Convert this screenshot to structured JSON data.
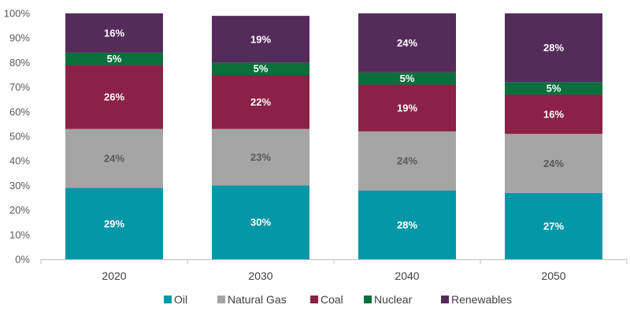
{
  "chart_data": {
    "type": "bar",
    "stacked": true,
    "categories": [
      "2020",
      "2030",
      "2040",
      "2050"
    ],
    "series": [
      {
        "name": "Oil",
        "values": [
          29,
          30,
          28,
          27
        ],
        "labels": [
          "29%",
          "30%",
          "28%",
          "27%"
        ],
        "color": "#0597a7",
        "label_color": "#ffffff"
      },
      {
        "name": "Natural Gas",
        "values": [
          24,
          23,
          24,
          24
        ],
        "labels": [
          "24%",
          "23%",
          "24%",
          "24%"
        ],
        "color": "#a5a5a5",
        "label_color": "#595959"
      },
      {
        "name": "Coal",
        "values": [
          26,
          22,
          19,
          16
        ],
        "labels": [
          "26%",
          "22%",
          "19%",
          "16%"
        ],
        "color": "#8b2146",
        "label_color": "#ffffff"
      },
      {
        "name": "Nuclear",
        "values": [
          5,
          5,
          5,
          5
        ],
        "labels": [
          "5%",
          "5%",
          "5%",
          "5%"
        ],
        "color": "#0a6f3a",
        "label_color": "#ffffff"
      },
      {
        "name": "Renewables",
        "values": [
          16,
          19,
          24,
          28
        ],
        "labels": [
          "16%",
          "19%",
          "24%",
          "28%"
        ],
        "color": "#552b5c",
        "label_color": "#ffffff"
      }
    ],
    "y_ticks": [
      "0%",
      "10%",
      "20%",
      "30%",
      "40%",
      "50%",
      "60%",
      "70%",
      "80%",
      "90%",
      "100%"
    ],
    "ylim": [
      0,
      100
    ],
    "legend_position": "bottom",
    "grid": false
  }
}
